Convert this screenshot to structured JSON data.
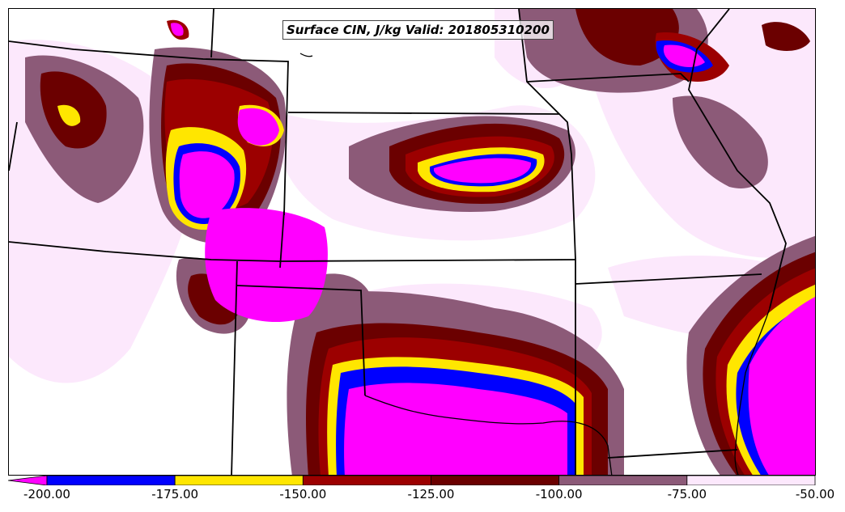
{
  "map": {
    "title": "Surface CIN, J/kg Valid: 201805310200"
  },
  "legend": {
    "colors": [
      "#ff00ff",
      "#0000ff",
      "#ffe600",
      "#9c0000",
      "#6b0000",
      "#8c5a78",
      "#fce8fc"
    ],
    "bins": [
      {
        "from": -200,
        "to": -175,
        "color": "#0000ff"
      },
      {
        "from": -175,
        "to": -150,
        "color": "#ffe600"
      },
      {
        "from": -150,
        "to": -125,
        "color": "#9c0000"
      },
      {
        "from": -125,
        "to": -100,
        "color": "#6b0000"
      },
      {
        "from": -100,
        "to": -75,
        "color": "#8c5a78"
      },
      {
        "from": -75,
        "to": -50,
        "color": "#fce8fc"
      }
    ],
    "under_color": "#ff00ff",
    "ticks": [
      "-200.00",
      "-175.00",
      "-150.00",
      "-125.00",
      "-100.00",
      "-75.00",
      "-50.00"
    ]
  }
}
